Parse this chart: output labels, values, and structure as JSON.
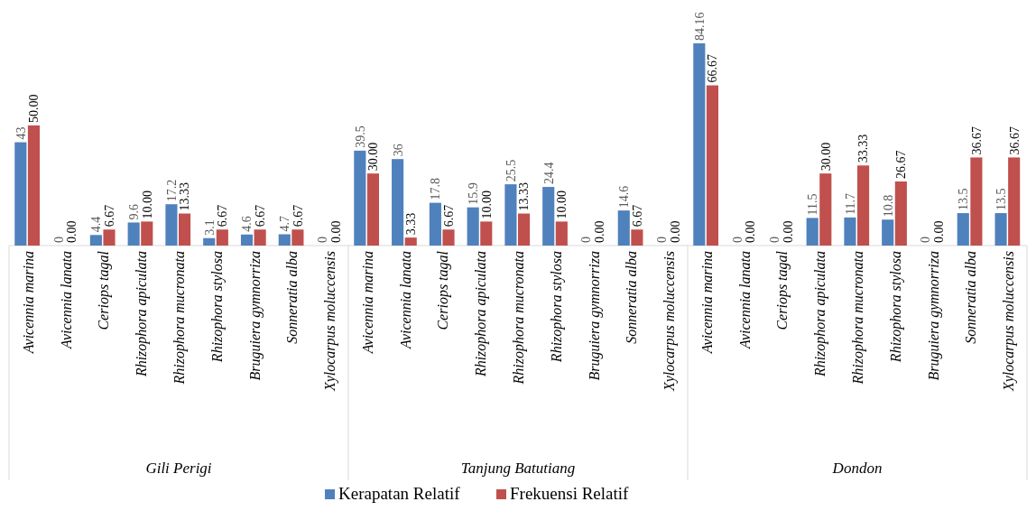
{
  "chart_data": {
    "type": "bar",
    "categories": [
      "Avicennia marina",
      "Avicennia lanata",
      "Ceriops tagal",
      "Rhizophora apiculata",
      "Rhizophora mucronata",
      "Rhizophora stylosa",
      "Bruguiera gymnorriza",
      "Sonneratia alba",
      "Xylocarpus moluccensis",
      "Avicennia marina",
      "Avicennia lanata",
      "Ceriops tagal",
      "Rhizophora apiculata",
      "Rhizophora mucronata",
      "Rhizophora stylosa",
      "Bruguiera gymnorriza",
      "Sonneratia alba",
      "Xylocarpus moluccensis",
      "Avicennia marina",
      "Avicennia lanata",
      "Ceriops tagal",
      "Rhizophora apiculata",
      "Rhizophora mucronata",
      "Rhizophora stylosa",
      "Bruguiera gymnorriza",
      "Sonneratia alba",
      "Xylocarpus moluccensis"
    ],
    "series": [
      {
        "name": "Kerapatan Relatif",
        "color": "#4f81bd",
        "values": [
          43,
          0,
          4.4,
          9.6,
          17.2,
          3.1,
          4.6,
          4.7,
          0,
          39.5,
          36,
          17.8,
          15.9,
          25.5,
          24.4,
          0,
          14.6,
          0,
          84.16,
          0,
          0,
          11.5,
          11.7,
          10.8,
          0,
          13.5,
          13.5
        ],
        "value_labels": [
          "43",
          "0",
          "4.4",
          "9.6",
          "17.2",
          "3.1",
          "4.6",
          "4.7",
          "0",
          "39.5",
          "36",
          "17.8",
          "15.9",
          "25.5",
          "24.4",
          "0",
          "14.6",
          "0",
          "84.16",
          "0",
          "0",
          "11.5",
          "11.7",
          "10.8",
          "0",
          "13.5",
          "13.5"
        ]
      },
      {
        "name": "Frekuensi Relatif",
        "color": "#c0504d",
        "values": [
          50,
          0,
          6.67,
          10,
          13.33,
          6.67,
          6.67,
          6.67,
          0,
          30,
          3.33,
          6.67,
          10,
          13.33,
          10,
          0,
          6.67,
          0,
          66.67,
          0,
          0,
          30,
          33.33,
          26.67,
          0,
          36.67,
          36.67
        ],
        "value_labels": [
          "50.00",
          "0.00",
          "6.67",
          "10.00",
          "13.33",
          "6.67",
          "6.67",
          "6.67",
          "0.00",
          "30.00",
          "3.33",
          "6.67",
          "10.00",
          "13.33",
          "10.00",
          "0.00",
          "6.67",
          "0.00",
          "66.67",
          "0.00",
          "0.00",
          "30.00",
          "33.33",
          "26.67",
          "0.00",
          "36.67",
          "36.67"
        ]
      }
    ],
    "annotations": [
      "Gili Perigi",
      "Tanjung Batutiang",
      "Dondon"
    ],
    "legend": "bottom"
  }
}
